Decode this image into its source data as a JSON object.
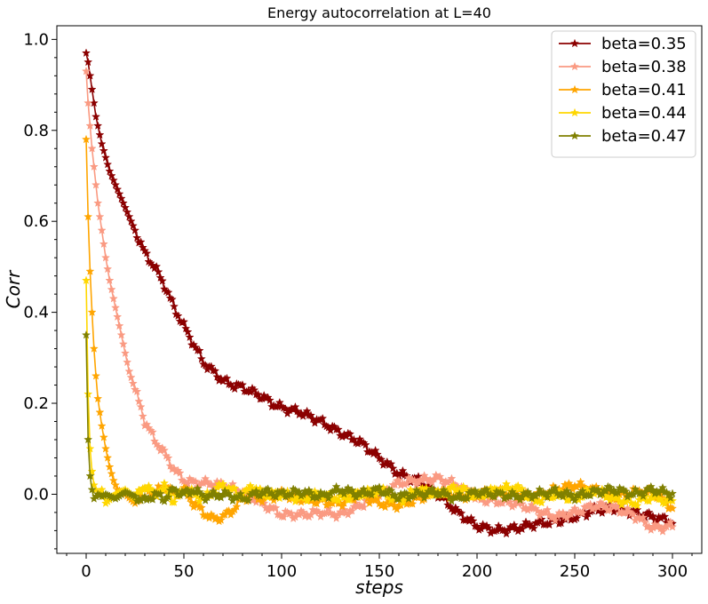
{
  "chart_data": {
    "type": "line",
    "title": "Energy autocorrelation at L=40",
    "xlabel": "steps",
    "ylabel": "Corr",
    "xlim": [
      -15,
      315
    ],
    "ylim": [
      -0.13,
      1.03
    ],
    "xticks": [
      0,
      50,
      100,
      150,
      200,
      250,
      300
    ],
    "yticks": [
      0.0,
      0.2,
      0.4,
      0.6,
      0.8,
      1.0
    ],
    "grid": false,
    "legend_position": "top-right",
    "marker": "star",
    "series": [
      {
        "name": "beta=0.35",
        "color": "#8b0000",
        "points": [
          [
            0,
            0.97
          ],
          [
            1,
            0.95
          ],
          [
            2,
            0.92
          ],
          [
            3,
            0.89
          ],
          [
            4,
            0.86
          ],
          [
            5,
            0.83
          ],
          [
            6,
            0.81
          ],
          [
            8,
            0.77
          ],
          [
            10,
            0.74
          ],
          [
            12,
            0.71
          ],
          [
            15,
            0.68
          ],
          [
            18,
            0.65
          ],
          [
            20,
            0.63
          ],
          [
            25,
            0.58
          ],
          [
            30,
            0.53
          ],
          [
            35,
            0.5
          ],
          [
            40,
            0.46
          ],
          [
            45,
            0.41
          ],
          [
            50,
            0.37
          ],
          [
            55,
            0.33
          ],
          [
            60,
            0.29
          ],
          [
            65,
            0.27
          ],
          [
            70,
            0.25
          ],
          [
            75,
            0.24
          ],
          [
            80,
            0.235
          ],
          [
            85,
            0.225
          ],
          [
            90,
            0.215
          ],
          [
            95,
            0.2
          ],
          [
            100,
            0.19
          ],
          [
            110,
            0.18
          ],
          [
            120,
            0.16
          ],
          [
            130,
            0.135
          ],
          [
            140,
            0.115
          ],
          [
            150,
            0.08
          ],
          [
            160,
            0.045
          ],
          [
            170,
            0.03
          ],
          [
            180,
            0.0
          ],
          [
            190,
            -0.04
          ],
          [
            200,
            -0.07
          ],
          [
            210,
            -0.08
          ],
          [
            220,
            -0.075
          ],
          [
            230,
            -0.065
          ],
          [
            240,
            -0.06
          ],
          [
            250,
            -0.05
          ],
          [
            260,
            -0.035
          ],
          [
            270,
            -0.03
          ],
          [
            280,
            -0.04
          ],
          [
            290,
            -0.05
          ],
          [
            300,
            -0.06
          ]
        ]
      },
      {
        "name": "beta=0.38",
        "color": "#fa9a82",
        "points": [
          [
            0,
            0.93
          ],
          [
            1,
            0.86
          ],
          [
            2,
            0.81
          ],
          [
            3,
            0.76
          ],
          [
            4,
            0.72
          ],
          [
            5,
            0.68
          ],
          [
            6,
            0.64
          ],
          [
            8,
            0.58
          ],
          [
            10,
            0.52
          ],
          [
            12,
            0.47
          ],
          [
            15,
            0.41
          ],
          [
            18,
            0.35
          ],
          [
            20,
            0.31
          ],
          [
            22,
            0.27
          ],
          [
            25,
            0.23
          ],
          [
            28,
            0.19
          ],
          [
            30,
            0.16
          ],
          [
            35,
            0.12
          ],
          [
            40,
            0.09
          ],
          [
            45,
            0.055
          ],
          [
            50,
            0.03
          ],
          [
            55,
            0.025
          ],
          [
            60,
            0.025
          ],
          [
            70,
            0.02
          ],
          [
            80,
            0.005
          ],
          [
            90,
            -0.02
          ],
          [
            100,
            -0.045
          ],
          [
            110,
            -0.045
          ],
          [
            120,
            -0.04
          ],
          [
            130,
            -0.045
          ],
          [
            140,
            -0.025
          ],
          [
            150,
            0.0
          ],
          [
            160,
            0.025
          ],
          [
            170,
            0.03
          ],
          [
            180,
            0.035
          ],
          [
            190,
            0.02
          ],
          [
            200,
            -0.01
          ],
          [
            210,
            -0.015
          ],
          [
            220,
            -0.02
          ],
          [
            230,
            -0.035
          ],
          [
            240,
            -0.05
          ],
          [
            250,
            -0.04
          ],
          [
            260,
            -0.025
          ],
          [
            270,
            -0.03
          ],
          [
            280,
            -0.045
          ],
          [
            290,
            -0.075
          ],
          [
            300,
            -0.07
          ]
        ]
      },
      {
        "name": "beta=0.41",
        "color": "#ffa500",
        "points": [
          [
            0,
            0.78
          ],
          [
            1,
            0.61
          ],
          [
            2,
            0.49
          ],
          [
            3,
            0.4
          ],
          [
            4,
            0.32
          ],
          [
            5,
            0.26
          ],
          [
            6,
            0.21
          ],
          [
            8,
            0.15
          ],
          [
            10,
            0.1
          ],
          [
            12,
            0.06
          ],
          [
            14,
            0.03
          ],
          [
            16,
            0.01
          ],
          [
            20,
            0.0
          ],
          [
            25,
            -0.02
          ],
          [
            30,
            0.01
          ],
          [
            35,
            0.0
          ],
          [
            40,
            0.02
          ],
          [
            45,
            0.0
          ],
          [
            50,
            0.01
          ],
          [
            55,
            -0.02
          ],
          [
            60,
            -0.04
          ],
          [
            65,
            -0.055
          ],
          [
            70,
            -0.05
          ],
          [
            75,
            -0.035
          ],
          [
            80,
            -0.01
          ],
          [
            85,
            0.0
          ],
          [
            90,
            -0.01
          ],
          [
            100,
            0.0
          ],
          [
            110,
            -0.01
          ],
          [
            120,
            -0.015
          ],
          [
            130,
            -0.02
          ],
          [
            140,
            0.0
          ],
          [
            150,
            -0.02
          ],
          [
            160,
            -0.025
          ],
          [
            170,
            -0.01
          ],
          [
            180,
            0.005
          ],
          [
            190,
            -0.005
          ],
          [
            200,
            0.0
          ],
          [
            210,
            0.005
          ],
          [
            220,
            0.0
          ],
          [
            230,
            -0.005
          ],
          [
            240,
            0.01
          ],
          [
            250,
            0.02
          ],
          [
            260,
            0.01
          ],
          [
            270,
            -0.005
          ],
          [
            280,
            0.005
          ],
          [
            290,
            0.005
          ],
          [
            300,
            -0.03
          ]
        ]
      },
      {
        "name": "beta=0.44",
        "color": "#ffd700",
        "points": [
          [
            0,
            0.47
          ],
          [
            1,
            0.22
          ],
          [
            2,
            0.1
          ],
          [
            3,
            0.05
          ],
          [
            4,
            0.02
          ],
          [
            6,
            0.0
          ],
          [
            8,
            0.01
          ],
          [
            10,
            -0.02
          ],
          [
            15,
            0.0
          ],
          [
            20,
            0.01
          ],
          [
            25,
            -0.01
          ],
          [
            30,
            0.02
          ],
          [
            35,
            0.0
          ],
          [
            40,
            0.015
          ],
          [
            45,
            -0.015
          ],
          [
            50,
            0.01
          ],
          [
            55,
            0.0
          ],
          [
            60,
            -0.01
          ],
          [
            70,
            0.02
          ],
          [
            80,
            -0.005
          ],
          [
            85,
            0.02
          ],
          [
            90,
            0.0
          ],
          [
            100,
            0.0
          ],
          [
            110,
            -0.01
          ],
          [
            120,
            0.0
          ],
          [
            130,
            -0.01
          ],
          [
            140,
            0.0
          ],
          [
            150,
            0.01
          ],
          [
            160,
            -0.015
          ],
          [
            170,
            0.01
          ],
          [
            180,
            0.0
          ],
          [
            190,
            0.015
          ],
          [
            200,
            -0.005
          ],
          [
            210,
            0.01
          ],
          [
            220,
            0.015
          ],
          [
            230,
            -0.015
          ],
          [
            240,
            0.0
          ],
          [
            250,
            -0.01
          ],
          [
            260,
            0.01
          ],
          [
            270,
            -0.01
          ],
          [
            280,
            -0.02
          ],
          [
            290,
            -0.005
          ],
          [
            300,
            -0.02
          ]
        ]
      },
      {
        "name": "beta=0.47",
        "color": "#808000",
        "points": [
          [
            0,
            0.35
          ],
          [
            1,
            0.12
          ],
          [
            2,
            0.04
          ],
          [
            3,
            0.01
          ],
          [
            4,
            -0.01
          ],
          [
            6,
            0.0
          ],
          [
            8,
            -0.005
          ],
          [
            10,
            0.0
          ],
          [
            15,
            -0.01
          ],
          [
            20,
            0.005
          ],
          [
            25,
            -0.005
          ],
          [
            30,
            -0.015
          ],
          [
            35,
            0.0
          ],
          [
            40,
            -0.01
          ],
          [
            45,
            0.01
          ],
          [
            50,
            0.0
          ],
          [
            55,
            0.01
          ],
          [
            60,
            -0.005
          ],
          [
            70,
            0.0
          ],
          [
            80,
            -0.01
          ],
          [
            90,
            0.005
          ],
          [
            100,
            0.0
          ],
          [
            110,
            0.005
          ],
          [
            120,
            -0.005
          ],
          [
            130,
            0.01
          ],
          [
            140,
            0.0
          ],
          [
            150,
            0.01
          ],
          [
            160,
            -0.005
          ],
          [
            170,
            0.0
          ],
          [
            180,
            0.005
          ],
          [
            190,
            -0.01
          ],
          [
            200,
            0.005
          ],
          [
            210,
            0.0
          ],
          [
            220,
            -0.005
          ],
          [
            230,
            0.0
          ],
          [
            240,
            0.005
          ],
          [
            250,
            -0.005
          ],
          [
            260,
            0.005
          ],
          [
            270,
            0.01
          ],
          [
            280,
            0.0
          ],
          [
            290,
            0.01
          ],
          [
            300,
            0.0
          ]
        ]
      }
    ]
  }
}
